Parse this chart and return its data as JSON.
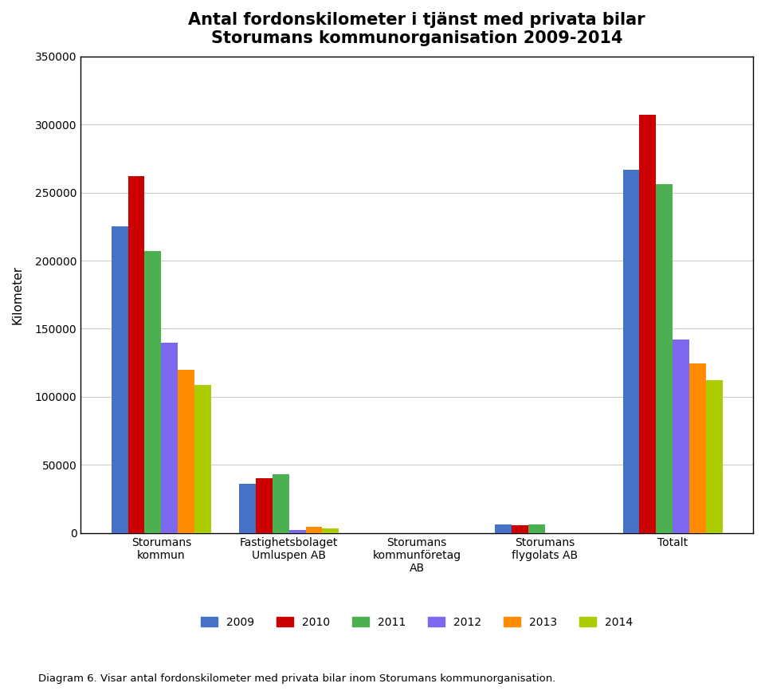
{
  "title_line1": "Antal fordonskilometer i tjänst med privata bilar",
  "title_line2": "Storumans kommunorganisation 2009-2014",
  "ylabel": "Kilometer",
  "categories": [
    "Storumans\nkommun",
    "Fastighetsbolaget\nUmluspen AB",
    "Storumans\nkommunföretag\nAB",
    "Storumans\nflygolats AB",
    "Totalt"
  ],
  "years": [
    "2009",
    "2010",
    "2011",
    "2012",
    "2013",
    "2014"
  ],
  "colors": [
    "#4472C4",
    "#CC0000",
    "#4CAF50",
    "#7B68EE",
    "#FF8C00",
    "#AACC00"
  ],
  "data": {
    "Storumans\nkommun": [
      225000,
      262000,
      207000,
      140000,
      120000,
      109000
    ],
    "Fastighetsbolaget\nUmluspen AB": [
      36000,
      40000,
      43000,
      2000,
      4500,
      3500
    ],
    "Storumans\nkommunföretag\nAB": [
      0,
      0,
      0,
      0,
      0,
      0
    ],
    "Storumans\nflygolats AB": [
      6500,
      5500,
      6000,
      0,
      0,
      0
    ],
    "Totalt": [
      267000,
      307000,
      256000,
      142000,
      124500,
      112000
    ]
  },
  "ylim": [
    0,
    350000
  ],
  "yticks": [
    0,
    50000,
    100000,
    150000,
    200000,
    250000,
    300000,
    350000
  ],
  "background_color": "#ffffff",
  "chart_bg": "#ffffff",
  "border_color": "#000000",
  "grid_color": "#cccccc",
  "title_fontsize": 15,
  "axis_label_fontsize": 11,
  "tick_fontsize": 10,
  "legend_fontsize": 10
}
